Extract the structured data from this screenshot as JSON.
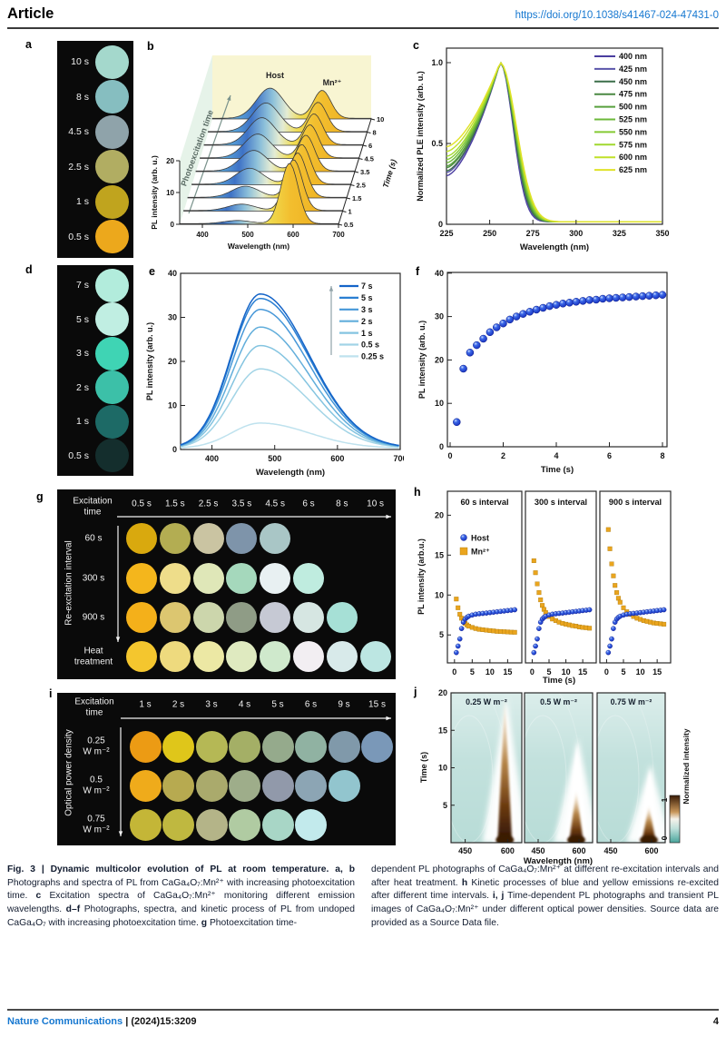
{
  "header": {
    "article_label": "Article",
    "doi": "https://doi.org/10.1038/s41467-024-47431-0"
  },
  "footer": {
    "journal": "Nature Communications",
    "separator": " | ",
    "citation": "(2024)15:3209",
    "page": "4"
  },
  "panels": {
    "a": {
      "label": "a",
      "items": [
        {
          "time": "10 s",
          "color": "#a4d8cc"
        },
        {
          "time": "8 s",
          "color": "#86bec0"
        },
        {
          "time": "4.5 s",
          "color": "#8fa3aa"
        },
        {
          "time": "2.5 s",
          "color": "#b1ad62"
        },
        {
          "time": "1 s",
          "color": "#c0a41e"
        },
        {
          "time": "0.5 s",
          "color": "#eca81c"
        }
      ]
    },
    "b": {
      "label": "b",
      "type": "waterfall-3d",
      "ylabel": "PL intensity (arb. u.)",
      "xlabel": "Wavelength (nm)",
      "zlabel": "Time (s)",
      "yticks": [
        0,
        10,
        20
      ],
      "xticks": [
        400,
        500,
        600,
        700
      ],
      "time_labels": [
        "0.5",
        "1",
        "1.5",
        "2.5",
        "3.5",
        "4.5",
        "6",
        "8",
        "10"
      ],
      "host_peaks": [
        1,
        2,
        3.5,
        5,
        6.5,
        7.5,
        8.5,
        9,
        9.5
      ],
      "mn_peaks": [
        19,
        16,
        14,
        12.5,
        11.3,
        10.4,
        9.7,
        9.2,
        8.8
      ],
      "host_center_nm": 477,
      "mn_center_nm": 592,
      "annotations": {
        "host": "Host",
        "mn": "Mn²⁺",
        "arrow": "Photoexcitation time"
      }
    },
    "c": {
      "label": "c",
      "type": "line",
      "ylabel": "Normalized PLE intensity (arb. u.)",
      "xlabel": "Wavelength (nm)",
      "xticks": [
        225,
        250,
        275,
        300,
        325,
        350
      ],
      "ytick_labels": [
        "0",
        "0.5",
        "1.0"
      ],
      "yticks": [
        0,
        0.5,
        1.0
      ],
      "peak_nm": 256,
      "series": [
        {
          "name": "400 nm",
          "color": "#4a3da0",
          "start": 0.3
        },
        {
          "name": "425 nm",
          "color": "#5a55aa",
          "start": 0.32
        },
        {
          "name": "450 nm",
          "color": "#3c6e4a",
          "start": 0.33
        },
        {
          "name": "475 nm",
          "color": "#4a8842",
          "start": 0.35
        },
        {
          "name": "500 nm",
          "color": "#58a03e",
          "start": 0.36
        },
        {
          "name": "525 nm",
          "color": "#6cb83a",
          "start": 0.38
        },
        {
          "name": "550 nm",
          "color": "#84ca34",
          "start": 0.4
        },
        {
          "name": "575 nm",
          "color": "#a0d82e",
          "start": 0.42
        },
        {
          "name": "600 nm",
          "color": "#c0e028",
          "start": 0.45
        },
        {
          "name": "625 nm",
          "color": "#e0e228",
          "start": 0.48
        }
      ]
    },
    "d": {
      "label": "d",
      "items": [
        {
          "time": "7 s",
          "color": "#b2ecdc"
        },
        {
          "time": "5 s",
          "color": "#c0eee2"
        },
        {
          "time": "3 s",
          "color": "#3fd4b4"
        },
        {
          "time": "2 s",
          "color": "#3cc0a8"
        },
        {
          "time": "1 s",
          "color": "#1d6a66"
        },
        {
          "time": "0.5 s",
          "color": "#142e2d"
        }
      ]
    },
    "e": {
      "label": "e",
      "type": "line",
      "ylabel": "PL intensity (arb. u.)",
      "xlabel": "Wavelength (nm)",
      "xticks": [
        400,
        500,
        600,
        700
      ],
      "yticks": [
        0,
        10,
        20,
        30,
        40
      ],
      "peak_nm": 477,
      "series": [
        {
          "name": "7 s",
          "peak": 35,
          "color": "#1464c8"
        },
        {
          "name": "5 s",
          "peak": 34,
          "color": "#2a7fd2"
        },
        {
          "name": "3 s",
          "peak": 31.5,
          "color": "#4697d8"
        },
        {
          "name": "2 s",
          "peak": 27.5,
          "color": "#62aedb"
        },
        {
          "name": "1 s",
          "peak": 23.3,
          "color": "#84c4e0"
        },
        {
          "name": "0.5 s",
          "peak": 18,
          "color": "#a2d4e6"
        },
        {
          "name": "0.25 s",
          "peak": 5.7,
          "color": "#bfe2ee"
        }
      ]
    },
    "f": {
      "label": "f",
      "type": "scatter",
      "ylabel": "PL intensity (arb. u.)",
      "xlabel": "Time (s)",
      "xticks": [
        0,
        2,
        4,
        6,
        8
      ],
      "yticks": [
        0,
        10,
        20,
        30,
        40
      ],
      "marker_color": "#1a3cd8",
      "points": [
        [
          0.25,
          5.7
        ],
        [
          0.5,
          18.0
        ],
        [
          0.75,
          21.7
        ],
        [
          1,
          23.4
        ],
        [
          1.25,
          24.9
        ],
        [
          1.5,
          26.4
        ],
        [
          1.75,
          27.5
        ],
        [
          2,
          28.4
        ],
        [
          2.25,
          29.3
        ],
        [
          2.5,
          30.0
        ],
        [
          2.75,
          30.6
        ],
        [
          3,
          31.1
        ],
        [
          3.25,
          31.6
        ],
        [
          3.5,
          32.0
        ],
        [
          3.75,
          32.4
        ],
        [
          4,
          32.7
        ],
        [
          4.25,
          33.0
        ],
        [
          4.5,
          33.2
        ],
        [
          4.75,
          33.4
        ],
        [
          5,
          33.6
        ],
        [
          5.25,
          33.8
        ],
        [
          5.5,
          33.9
        ],
        [
          5.75,
          34.1
        ],
        [
          6,
          34.2
        ],
        [
          6.25,
          34.3
        ],
        [
          6.5,
          34.4
        ],
        [
          6.75,
          34.5
        ],
        [
          7,
          34.6
        ],
        [
          7.25,
          34.7
        ],
        [
          7.5,
          34.8
        ],
        [
          7.75,
          34.9
        ],
        [
          8,
          35.0
        ]
      ]
    },
    "g": {
      "label": "g",
      "header": "Excitation time",
      "side_label": "Re-excitation interval",
      "columns": [
        "0.5 s",
        "1.5 s",
        "2.5 s",
        "3.5 s",
        "4.5 s",
        "6 s",
        "8 s",
        "10 s"
      ],
      "rows": [
        {
          "name": "60 s",
          "colors": [
            "#d9a90e",
            "#b3ad52",
            "#cac4a2",
            "#7e94aa",
            "#a9c6c6"
          ]
        },
        {
          "name": "300 s",
          "colors": [
            "#f4b61c",
            "#eedd8a",
            "#dfe7b8",
            "#a5d8bc",
            "#e8f0f2",
            "#bfecdf"
          ]
        },
        {
          "name": "900 s",
          "colors": [
            "#f4b01a",
            "#dcc670",
            "#ccd6ac",
            "#8f9c86",
            "#c6c9d4",
            "#d6e6e2",
            "#a6e0d6"
          ]
        },
        {
          "name": "Heat treatment",
          "colors": [
            "#f4c62e",
            "#eeda7e",
            "#ece8a4",
            "#dfeac0",
            "#cfe9cc",
            "#f2eef2",
            "#d8eaea",
            "#bce6e2"
          ]
        }
      ]
    },
    "h": {
      "label": "h",
      "type": "scatter-multi",
      "ylabel": "PL intensity (arb.u.)",
      "xlabel": "Time (s)",
      "yticks": [
        5,
        10,
        15,
        20
      ],
      "xticks": [
        0,
        5,
        10,
        15
      ],
      "legend": [
        {
          "name": "Host",
          "color": "#1a3cd8",
          "marker": "circle"
        },
        {
          "name": "Mn²⁺",
          "color": "#eaa51e",
          "marker": "square"
        }
      ],
      "times": [
        0.5,
        1,
        1.5,
        2,
        2.5,
        3,
        3.5,
        4,
        5,
        6,
        7,
        8,
        9,
        10,
        11,
        12,
        13,
        14,
        15,
        16,
        17
      ],
      "host_values": [
        2.8,
        3.6,
        4.5,
        5.8,
        6.6,
        7.0,
        7.2,
        7.35,
        7.5,
        7.6,
        7.65,
        7.7,
        7.75,
        7.8,
        7.85,
        7.9,
        7.95,
        8.0,
        8.05,
        8.1,
        8.15
      ],
      "panels": [
        {
          "title": "60 s interval",
          "mn_values": [
            9.5,
            8.4,
            7.6,
            7.1,
            6.7,
            6.45,
            6.25,
            6.1,
            5.95,
            5.8,
            5.7,
            5.65,
            5.6,
            5.55,
            5.5,
            5.45,
            5.42,
            5.4,
            5.38,
            5.35,
            5.33
          ]
        },
        {
          "title": "300 s interval",
          "mn_values": [
            14.3,
            12.8,
            11.4,
            10.3,
            9.4,
            8.7,
            8.2,
            7.8,
            7.3,
            7.0,
            6.8,
            6.6,
            6.45,
            6.35,
            6.25,
            6.15,
            6.1,
            6.0,
            5.95,
            5.9,
            5.85
          ]
        },
        {
          "title": "900 s interval",
          "mn_values": [
            18.2,
            15.8,
            13.9,
            12.4,
            11.2,
            10.3,
            9.6,
            9.1,
            8.4,
            7.9,
            7.6,
            7.3,
            7.1,
            6.95,
            6.8,
            6.7,
            6.6,
            6.5,
            6.45,
            6.4,
            6.35
          ]
        }
      ]
    },
    "i": {
      "label": "i",
      "header": "Excitation time",
      "side_label": "Optical power density",
      "columns": [
        "1 s",
        "2 s",
        "3 s",
        "4 s",
        "5 s",
        "6 s",
        "9 s",
        "15 s"
      ],
      "rows": [
        {
          "name": "0.25\nW m⁻²",
          "colors": [
            "#ec9b14",
            "#dfc61a",
            "#b5b855",
            "#a4af66",
            "#95aa8c",
            "#90b2a2",
            "#8099aa",
            "#7a98b8"
          ]
        },
        {
          "name": "0.5\nW m⁻²",
          "colors": [
            "#efab1b",
            "#b7aa50",
            "#aaaa6c",
            "#9ead8a",
            "#9199aa",
            "#8ca5b4",
            "#92c5ce"
          ]
        },
        {
          "name": "0.75\nW m⁻²",
          "colors": [
            "#c4b637",
            "#bfb840",
            "#b4b488",
            "#b0cba2",
            "#a8d6c6",
            "#c2eaec"
          ]
        }
      ]
    },
    "j": {
      "label": "j",
      "type": "heatmap",
      "ylabel": "Time (s)",
      "xlabel": "Wavelength (nm)",
      "yticks": [
        5,
        10,
        15,
        20
      ],
      "xticks": [
        450,
        600
      ],
      "colorbar": {
        "label": "Normalized intensity",
        "min": "0",
        "max": "1"
      },
      "emission_center_nm": 590,
      "panels": [
        {
          "title": "0.25 W m⁻²",
          "white_top_s": 19.5,
          "brown_top_s": 19.5
        },
        {
          "title": "0.5 W m⁻²",
          "white_top_s": 14,
          "brown_top_s": 7
        },
        {
          "title": "0.75 W m⁻²",
          "white_top_s": 10.5,
          "brown_top_s": 5
        }
      ]
    }
  },
  "caption": {
    "left": [
      {
        "text": "Fig. 3 | Dynamic multicolor evolution of PL at room temperature. ",
        "bold": true
      },
      {
        "text": "a, b",
        "bold": true
      },
      {
        "text": " Photographs and spectra of PL from CaGa₄O₇:Mn²⁺ with increasing photoexcitation time. ",
        "bold": false
      },
      {
        "text": "c",
        "bold": true
      },
      {
        "text": " Excitation spectra of CaGa₄O₇:Mn²⁺ monitoring different emission wavelengths. ",
        "bold": false
      },
      {
        "text": "d–f",
        "bold": true
      },
      {
        "text": " Photographs, spectra, and kinetic process of PL from undoped CaGa₄O₇ with increasing photoexcitation time. ",
        "bold": false
      },
      {
        "text": "g",
        "bold": true
      },
      {
        "text": " Photoexcitation time-",
        "bold": false
      }
    ],
    "right": [
      {
        "text": "dependent PL photographs of CaGa₄O₇:Mn²⁺ at different re-excitation intervals and after heat treatment. ",
        "bold": false
      },
      {
        "text": "h",
        "bold": true
      },
      {
        "text": " Kinetic processes of blue and yellow emissions re-excited after different time intervals. ",
        "bold": false
      },
      {
        "text": "i, j",
        "bold": true
      },
      {
        "text": " Time-dependent PL photographs and transient PL images of CaGa₄O₇:Mn²⁺ under different optical power densities. Source data are provided as a Source Data file.",
        "bold": false
      }
    ]
  }
}
